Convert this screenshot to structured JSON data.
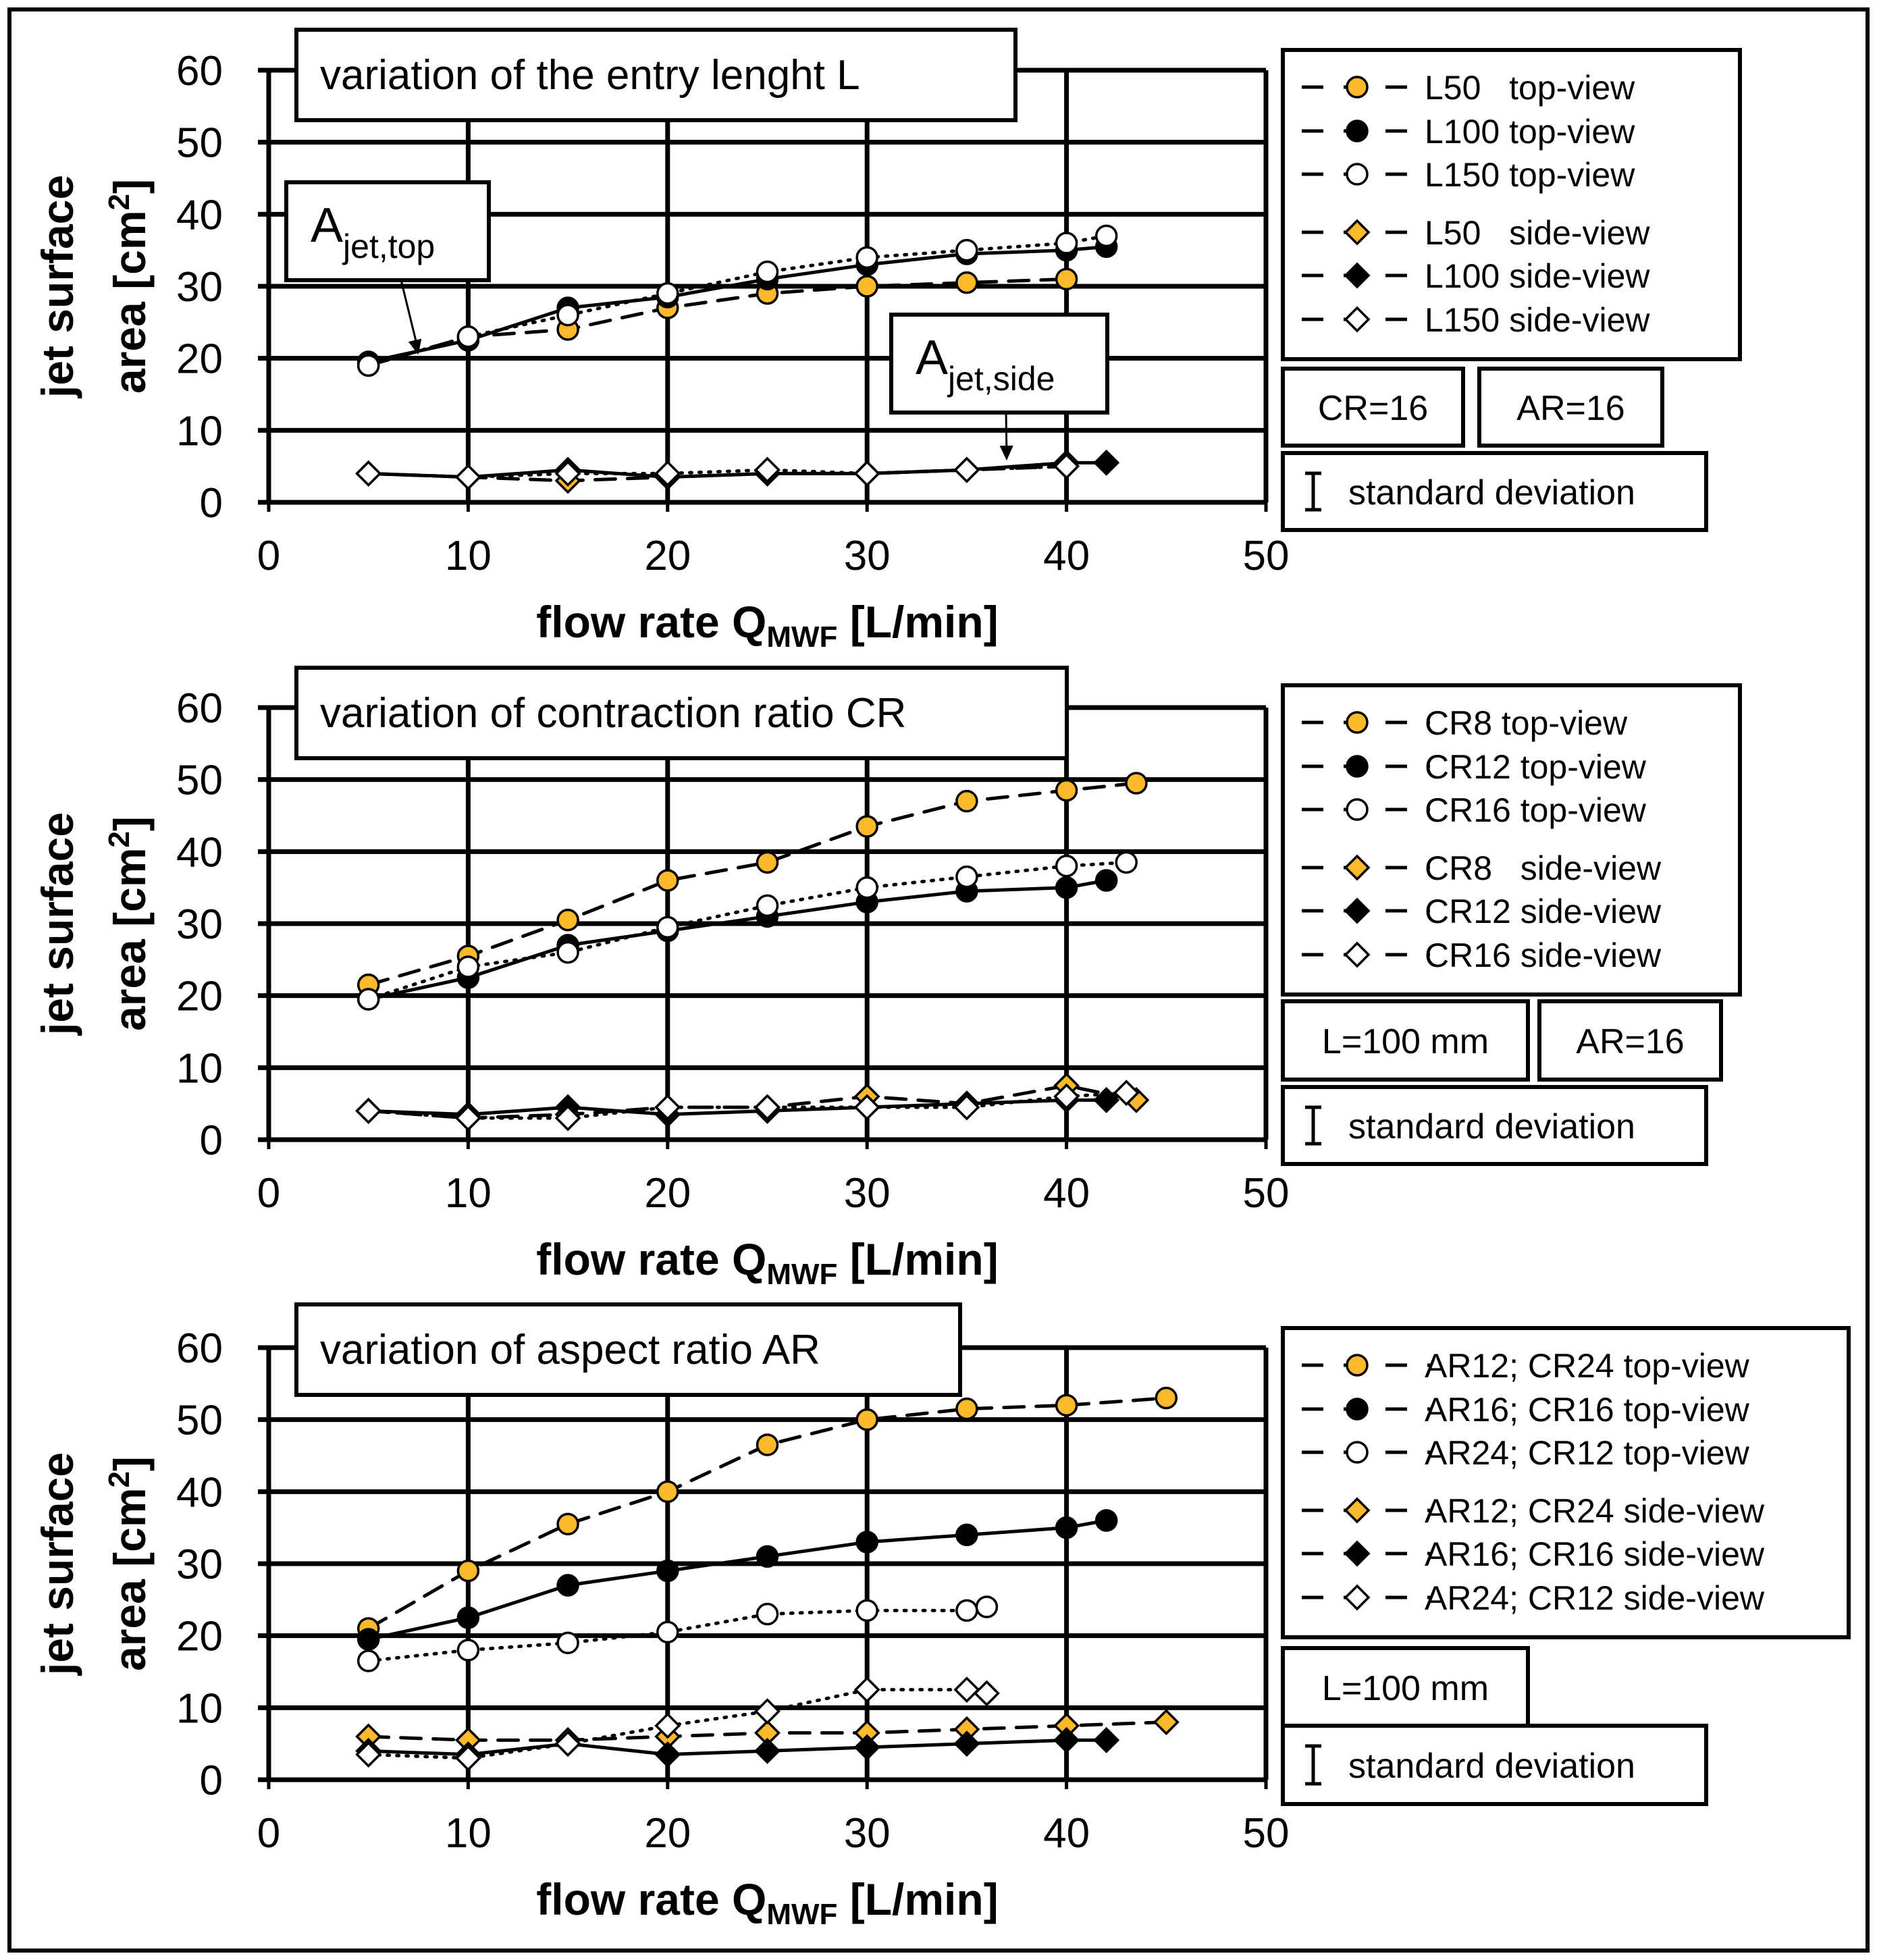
{
  "colors": {
    "orange": "#FDB92C",
    "black": "#000000",
    "white": "#FFFFFF"
  },
  "chart_data": [
    {
      "type": "line",
      "title": "variation of the entry lenght L",
      "xlabel": {
        "main": "flow rate Q",
        "sub": "MWF",
        "unit": " [L/min]"
      },
      "ylabel": {
        "line1": "jet surface",
        "line2": "area [cm",
        "sup": "2",
        "close": "]"
      },
      "xlim": [
        0,
        50
      ],
      "ylim": [
        0,
        60
      ],
      "xticks": [
        "0",
        "10",
        "20",
        "30",
        "40",
        "50"
      ],
      "yticks": [
        "0",
        "10",
        "20",
        "30",
        "40",
        "50",
        "60"
      ],
      "grid": true,
      "series": [
        {
          "name": "L50   top-view",
          "marker": "circle",
          "fill": "orange",
          "line": "dashed",
          "points": [
            [
              5,
              19
            ],
            [
              10,
              23
            ],
            [
              15,
              24
            ],
            [
              20,
              27
            ],
            [
              25,
              29
            ],
            [
              30,
              30
            ],
            [
              35,
              30.5
            ],
            [
              40,
              31
            ]
          ]
        },
        {
          "name": "L100 top-view",
          "marker": "circle",
          "fill": "black",
          "line": "solid",
          "points": [
            [
              5,
              19.5
            ],
            [
              10,
              22.5
            ],
            [
              15,
              27
            ],
            [
              20,
              28.5
            ],
            [
              25,
              31
            ],
            [
              30,
              33
            ],
            [
              35,
              34.5
            ],
            [
              40,
              35
            ],
            [
              42,
              35.5
            ]
          ]
        },
        {
          "name": "L150 top-view",
          "marker": "circle",
          "fill": "white",
          "line": "dotted",
          "points": [
            [
              5,
              19
            ],
            [
              10,
              23
            ],
            [
              15,
              26
            ],
            [
              20,
              29
            ],
            [
              25,
              32
            ],
            [
              30,
              34
            ],
            [
              35,
              35
            ],
            [
              40,
              36
            ],
            [
              42,
              37
            ]
          ]
        },
        {
          "name": "L50   side-view",
          "marker": "diamond",
          "fill": "orange",
          "line": "dashed",
          "points": [
            [
              5,
              4
            ],
            [
              10,
              3.5
            ],
            [
              15,
              3
            ],
            [
              20,
              3.5
            ],
            [
              25,
              4
            ],
            [
              30,
              4
            ],
            [
              35,
              4.5
            ],
            [
              40,
              5
            ]
          ]
        },
        {
          "name": "L100 side-view",
          "marker": "diamond",
          "fill": "black",
          "line": "solid",
          "points": [
            [
              5,
              4
            ],
            [
              10,
              3.5
            ],
            [
              15,
              4.5
            ],
            [
              20,
              3.5
            ],
            [
              25,
              4
            ],
            [
              30,
              4
            ],
            [
              35,
              4.5
            ],
            [
              40,
              5.5
            ],
            [
              42,
              5.5
            ]
          ]
        },
        {
          "name": "L150 side-view",
          "marker": "diamond",
          "fill": "white",
          "line": "dotted",
          "points": [
            [
              5,
              4
            ],
            [
              10,
              3.5
            ],
            [
              15,
              4
            ],
            [
              20,
              4
            ],
            [
              25,
              4.5
            ],
            [
              30,
              4
            ],
            [
              35,
              4.5
            ],
            [
              40,
              5
            ]
          ]
        }
      ],
      "annotations": [
        {
          "main": "A",
          "sub": "jet,top",
          "target": [
            7.5,
            20.5
          ]
        },
        {
          "main": "A",
          "sub": "jet,side",
          "target": [
            37,
            5.8
          ]
        }
      ],
      "params": [
        "CR=16",
        "AR=16"
      ],
      "std_label": "standard deviation"
    },
    {
      "type": "line",
      "title": "variation of contraction ratio CR",
      "xlabel": {
        "main": "flow rate Q",
        "sub": "MWF",
        "unit": " [L/min]"
      },
      "ylabel": {
        "line1": "jet surface",
        "line2": "area [cm",
        "sup": "2",
        "close": "]"
      },
      "xlim": [
        0,
        50
      ],
      "ylim": [
        0,
        60
      ],
      "xticks": [
        "0",
        "10",
        "20",
        "30",
        "40",
        "50"
      ],
      "yticks": [
        "0",
        "10",
        "20",
        "30",
        "40",
        "50",
        "60"
      ],
      "grid": true,
      "series": [
        {
          "name": "CR8 top-view",
          "marker": "circle",
          "fill": "orange",
          "line": "dashed",
          "points": [
            [
              5,
              21.5
            ],
            [
              10,
              25.5
            ],
            [
              15,
              30.5
            ],
            [
              20,
              36
            ],
            [
              25,
              38.5
            ],
            [
              30,
              43.5
            ],
            [
              35,
              47
            ],
            [
              40,
              48.5
            ],
            [
              43.5,
              49.5
            ]
          ]
        },
        {
          "name": "CR12 top-view",
          "marker": "circle",
          "fill": "black",
          "line": "solid",
          "points": [
            [
              5,
              19.5
            ],
            [
              10,
              22.5
            ],
            [
              15,
              27
            ],
            [
              20,
              29
            ],
            [
              25,
              31
            ],
            [
              30,
              33
            ],
            [
              35,
              34.5
            ],
            [
              40,
              35
            ],
            [
              42,
              36
            ]
          ]
        },
        {
          "name": "CR16 top-view",
          "marker": "circle",
          "fill": "white",
          "line": "dotted",
          "points": [
            [
              5,
              19.5
            ],
            [
              10,
              24
            ],
            [
              15,
              26
            ],
            [
              20,
              29.5
            ],
            [
              25,
              32.5
            ],
            [
              30,
              35
            ],
            [
              35,
              36.5
            ],
            [
              40,
              38
            ],
            [
              43,
              38.5
            ]
          ]
        },
        {
          "name": "CR8   side-view",
          "marker": "diamond",
          "fill": "orange",
          "line": "dashed",
          "points": [
            [
              5,
              4
            ],
            [
              10,
              3
            ],
            [
              15,
              3.5
            ],
            [
              20,
              4.5
            ],
            [
              25,
              4.5
            ],
            [
              30,
              6
            ],
            [
              35,
              5
            ],
            [
              40,
              7.5
            ],
            [
              43.5,
              5.5
            ]
          ]
        },
        {
          "name": "CR12 side-view",
          "marker": "diamond",
          "fill": "black",
          "line": "solid",
          "points": [
            [
              5,
              4
            ],
            [
              10,
              3.5
            ],
            [
              15,
              4.5
            ],
            [
              20,
              3.5
            ],
            [
              25,
              4
            ],
            [
              30,
              4.5
            ],
            [
              35,
              5
            ],
            [
              40,
              5.5
            ],
            [
              42,
              5.5
            ]
          ]
        },
        {
          "name": "CR16 side-view",
          "marker": "diamond",
          "fill": "white",
          "line": "dotted",
          "points": [
            [
              5,
              4
            ],
            [
              10,
              3
            ],
            [
              15,
              3
            ],
            [
              20,
              4.5
            ],
            [
              25,
              4.5
            ],
            [
              30,
              4.5
            ],
            [
              35,
              4.5
            ],
            [
              40,
              6
            ],
            [
              43,
              6.5
            ]
          ]
        }
      ],
      "annotations": [],
      "params": [
        "L=100 mm",
        "AR=16"
      ],
      "std_label": "standard deviation"
    },
    {
      "type": "line",
      "title": "variation of aspect ratio AR",
      "xlabel": {
        "main": "flow rate Q",
        "sub": "MWF",
        "unit": " [L/min]"
      },
      "ylabel": {
        "line1": "jet surface",
        "line2": "area [cm",
        "sup": "2",
        "close": "]"
      },
      "xlim": [
        0,
        50
      ],
      "ylim": [
        0,
        60
      ],
      "xticks": [
        "0",
        "10",
        "20",
        "30",
        "40",
        "50"
      ],
      "yticks": [
        "0",
        "10",
        "20",
        "30",
        "40",
        "50",
        "60"
      ],
      "grid": true,
      "series": [
        {
          "name": "AR12; CR24 top-view",
          "marker": "circle",
          "fill": "orange",
          "line": "dashed",
          "points": [
            [
              5,
              21
            ],
            [
              10,
              29
            ],
            [
              15,
              35.5
            ],
            [
              20,
              40
            ],
            [
              25,
              46.5
            ],
            [
              30,
              50
            ],
            [
              35,
              51.5
            ],
            [
              40,
              52
            ],
            [
              45,
              53
            ]
          ]
        },
        {
          "name": "AR16; CR16 top-view",
          "marker": "circle",
          "fill": "black",
          "line": "solid",
          "points": [
            [
              5,
              19.5
            ],
            [
              10,
              22.5
            ],
            [
              15,
              27
            ],
            [
              20,
              29
            ],
            [
              25,
              31
            ],
            [
              30,
              33
            ],
            [
              35,
              34
            ],
            [
              40,
              35
            ],
            [
              42,
              36
            ]
          ]
        },
        {
          "name": "AR24; CR12 top-view",
          "marker": "circle",
          "fill": "white",
          "line": "dotted",
          "points": [
            [
              5,
              16.5
            ],
            [
              10,
              18
            ],
            [
              15,
              19
            ],
            [
              20,
              20.5
            ],
            [
              25,
              23
            ],
            [
              30,
              23.5
            ],
            [
              35,
              23.5
            ],
            [
              36,
              24
            ]
          ]
        },
        {
          "name": "AR12; CR24 side-view",
          "marker": "diamond",
          "fill": "orange",
          "line": "dashed",
          "points": [
            [
              5,
              6
            ],
            [
              10,
              5.5
            ],
            [
              15,
              5.5
            ],
            [
              20,
              6
            ],
            [
              25,
              6.5
            ],
            [
              30,
              6.5
            ],
            [
              35,
              7
            ],
            [
              40,
              7.5
            ],
            [
              45,
              8
            ]
          ]
        },
        {
          "name": "AR16; CR16 side-view",
          "marker": "diamond",
          "fill": "black",
          "line": "solid",
          "points": [
            [
              5,
              4
            ],
            [
              10,
              3.5
            ],
            [
              15,
              5
            ],
            [
              20,
              3.5
            ],
            [
              25,
              4
            ],
            [
              30,
              4.5
            ],
            [
              35,
              5
            ],
            [
              40,
              5.5
            ],
            [
              42,
              5.5
            ]
          ]
        },
        {
          "name": "AR24; CR12 side-view",
          "marker": "diamond",
          "fill": "white",
          "line": "dotted",
          "points": [
            [
              5,
              3.5
            ],
            [
              10,
              3
            ],
            [
              15,
              5
            ],
            [
              20,
              7.5
            ],
            [
              25,
              9.5
            ],
            [
              30,
              12.5
            ],
            [
              35,
              12.5
            ],
            [
              36,
              12
            ]
          ]
        }
      ],
      "annotations": [],
      "params": [
        "L=100 mm"
      ],
      "std_label": "standard deviation"
    }
  ]
}
